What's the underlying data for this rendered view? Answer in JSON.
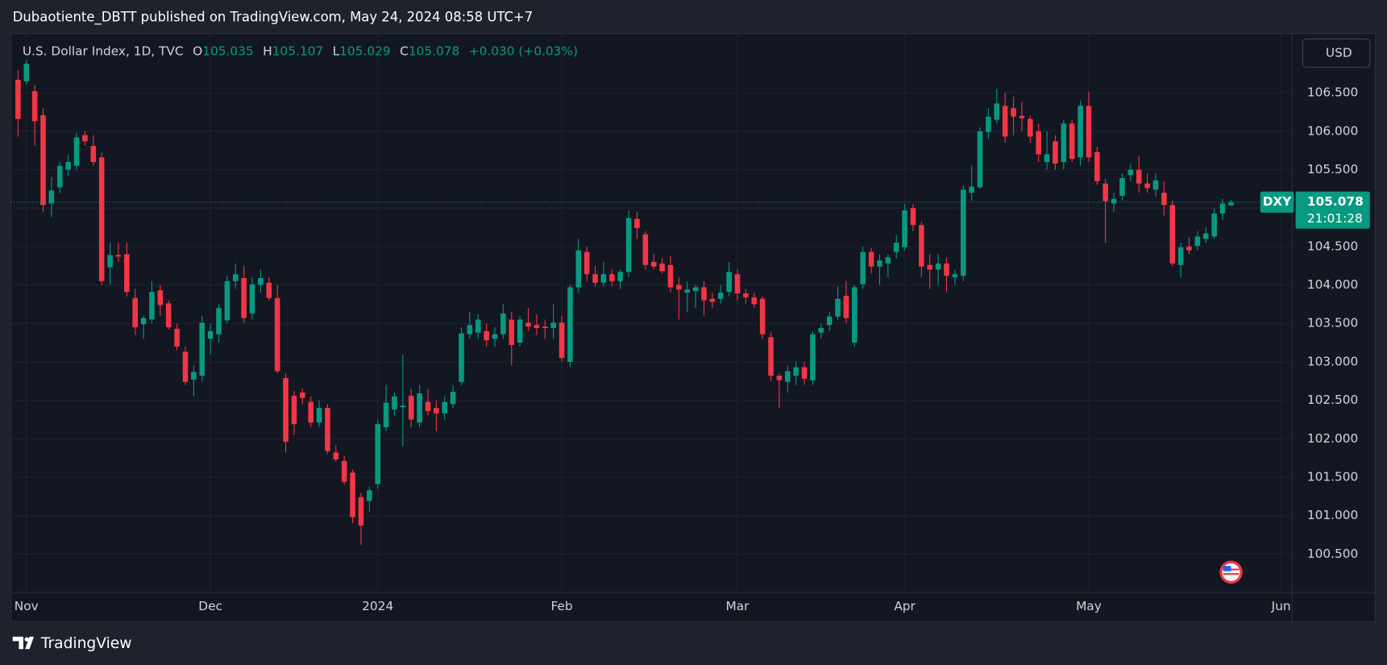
{
  "header": {
    "text": "Dubaotiente_DBTT published on TradingView.com, May 24, 2024 08:58 UTC+7"
  },
  "chart_data": {
    "type": "candlestick",
    "title": "U.S. Dollar Index, 1D, TVC",
    "ohlc_labels": [
      "O",
      "H",
      "L",
      "C"
    ],
    "change_label": "+0.030 (+0.03%)",
    "symbol": "DXY",
    "countdown": "21:01:28",
    "currency": "USD",
    "up_color": "#089981",
    "down_color": "#f23645",
    "grid": true,
    "open": [
      106.67,
      106.65,
      106.52,
      106.21,
      105.06,
      105.27,
      105.5,
      105.55,
      105.95,
      105.81,
      105.66,
      104.23,
      104.39,
      104.4,
      103.83,
      103.49,
      103.55,
      103.93,
      103.76,
      103.43,
      103.13,
      102.77,
      102.82,
      103.3,
      103.36,
      103.54,
      104.05,
      104.09,
      103.63,
      104.0,
      104.03,
      103.83,
      102.79,
      102.56,
      102.6,
      102.48,
      102.21,
      102.4,
      101.82,
      101.71,
      101.56,
      101.24,
      101.19,
      101.41,
      102.15,
      102.38,
      102.41,
      102.56,
      102.21,
      102.48,
      102.4,
      102.33,
      102.45,
      102.74,
      103.36,
      103.38,
      103.4,
      103.3,
      103.36,
      103.55,
      103.25,
      103.51,
      103.48,
      103.46,
      103.44,
      103.51,
      103.0,
      103.97,
      104.43,
      104.14,
      104.03,
      104.14,
      104.05,
      104.17,
      104.86,
      104.66,
      104.3,
      104.28,
      104.26,
      104.0,
      103.9,
      103.92,
      103.97,
      103.82,
      103.82,
      103.91,
      104.14,
      103.89,
      103.84,
      103.82,
      103.32,
      102.82,
      102.74,
      102.82,
      102.93,
      102.76,
      103.38,
      103.48,
      103.59,
      103.86,
      103.25,
      104.01,
      104.43,
      104.24,
      104.28,
      104.43,
      104.49,
      105.0,
      104.78,
      104.26,
      104.2,
      104.28,
      104.1,
      104.12,
      105.2,
      105.27,
      105.99,
      106.15,
      106.33,
      106.3,
      106.2,
      106.16,
      106.0,
      105.6,
      105.87,
      105.6,
      106.1,
      105.66,
      106.33,
      105.73,
      105.32,
      105.06,
      105.16,
      105.43,
      105.5,
      105.32,
      105.24,
      105.2,
      105.04,
      104.26,
      104.5,
      104.51,
      104.6,
      104.63,
      104.93,
      105.035
    ],
    "high": [
      106.79,
      106.93,
      106.6,
      106.3,
      105.4,
      105.6,
      105.7,
      105.98,
      106.0,
      105.95,
      105.72,
      104.55,
      104.55,
      104.55,
      103.95,
      103.6,
      104.05,
      104.0,
      103.8,
      103.5,
      103.2,
      102.95,
      103.6,
      103.5,
      103.75,
      104.12,
      104.28,
      104.25,
      104.1,
      104.2,
      104.1,
      104.0,
      102.85,
      102.62,
      102.65,
      102.55,
      102.5,
      102.45,
      101.92,
      101.78,
      101.6,
      101.3,
      101.38,
      102.25,
      102.7,
      102.6,
      103.09,
      102.65,
      102.7,
      102.65,
      102.5,
      102.55,
      102.7,
      103.45,
      103.65,
      103.62,
      103.5,
      103.45,
      103.75,
      103.65,
      103.6,
      103.7,
      103.62,
      103.55,
      103.75,
      103.6,
      104.0,
      104.6,
      104.5,
      104.25,
      104.3,
      104.2,
      104.2,
      104.97,
      104.95,
      104.7,
      104.4,
      104.35,
      104.38,
      104.1,
      104.05,
      104.0,
      104.05,
      103.9,
      104.0,
      104.3,
      104.2,
      103.95,
      103.9,
      103.85,
      103.38,
      102.85,
      102.95,
      103.0,
      103.0,
      103.4,
      103.5,
      103.65,
      103.98,
      104.05,
      104.0,
      104.5,
      104.48,
      104.4,
      104.4,
      104.65,
      105.05,
      105.05,
      104.82,
      104.4,
      104.4,
      104.35,
      104.2,
      105.3,
      105.55,
      106.05,
      106.3,
      106.55,
      106.5,
      106.45,
      106.38,
      106.2,
      106.1,
      106.0,
      105.95,
      106.15,
      106.15,
      106.4,
      106.51,
      105.8,
      105.38,
      105.2,
      105.45,
      105.58,
      105.68,
      105.45,
      105.45,
      105.35,
      105.1,
      104.55,
      104.62,
      104.7,
      104.75,
      105.0,
      105.12,
      105.107
    ],
    "low": [
      105.93,
      106.61,
      105.81,
      104.95,
      104.88,
      105.2,
      105.42,
      105.5,
      105.82,
      105.55,
      104.0,
      104.0,
      104.3,
      103.85,
      103.35,
      103.3,
      103.5,
      103.6,
      103.42,
      103.15,
      102.7,
      102.55,
      102.75,
      103.1,
      103.25,
      103.5,
      103.95,
      103.5,
      103.55,
      103.9,
      103.8,
      102.85,
      101.82,
      102.05,
      102.45,
      102.15,
      102.15,
      101.8,
      101.7,
      101.4,
      100.9,
      100.62,
      101.05,
      101.35,
      102.1,
      102.3,
      101.9,
      102.15,
      102.15,
      102.3,
      102.1,
      102.25,
      102.4,
      102.7,
      103.3,
      103.3,
      103.2,
      103.2,
      103.3,
      102.95,
      103.2,
      103.4,
      103.35,
      103.3,
      103.3,
      103.0,
      102.93,
      103.9,
      104.05,
      103.98,
      103.98,
      103.98,
      103.95,
      104.1,
      104.6,
      104.2,
      104.2,
      104.15,
      103.9,
      103.55,
      103.65,
      103.7,
      103.6,
      103.7,
      103.75,
      103.85,
      103.8,
      103.75,
      103.7,
      103.3,
      102.75,
      102.4,
      102.6,
      102.7,
      102.7,
      102.7,
      103.3,
      103.4,
      103.55,
      103.5,
      103.2,
      103.95,
      104.15,
      104.0,
      104.1,
      104.35,
      104.45,
      104.7,
      104.1,
      103.95,
      104.0,
      103.9,
      104.0,
      104.05,
      105.1,
      105.25,
      105.9,
      106.1,
      105.85,
      105.95,
      106.0,
      105.85,
      105.6,
      105.5,
      105.5,
      105.5,
      105.6,
      105.55,
      105.6,
      105.3,
      104.55,
      104.95,
      105.1,
      105.35,
      105.2,
      105.2,
      105.15,
      104.9,
      104.25,
      104.1,
      104.4,
      104.45,
      104.55,
      104.6,
      104.85,
      105.029
    ],
    "close": [
      106.16,
      106.88,
      106.13,
      105.04,
      105.23,
      105.55,
      105.6,
      105.92,
      105.87,
      105.6,
      104.05,
      104.39,
      104.37,
      103.91,
      103.45,
      103.57,
      103.91,
      103.74,
      103.45,
      103.2,
      102.74,
      102.87,
      103.51,
      103.4,
      103.7,
      104.05,
      104.14,
      103.57,
      104.01,
      104.09,
      103.83,
      102.88,
      101.96,
      102.19,
      102.53,
      102.21,
      102.4,
      101.84,
      101.73,
      101.44,
      100.98,
      100.87,
      101.33,
      102.19,
      102.47,
      102.55,
      102.43,
      102.25,
      102.59,
      102.36,
      102.33,
      102.48,
      102.61,
      103.37,
      103.48,
      103.55,
      103.28,
      103.36,
      103.63,
      103.22,
      103.55,
      103.46,
      103.44,
      103.44,
      103.51,
      103.05,
      103.97,
      104.45,
      104.14,
      104.03,
      104.14,
      104.05,
      104.17,
      104.87,
      104.74,
      104.26,
      104.24,
      104.18,
      103.97,
      103.94,
      103.94,
      103.97,
      103.8,
      103.78,
      103.9,
      104.17,
      103.89,
      103.84,
      103.75,
      103.36,
      102.82,
      102.76,
      102.88,
      102.93,
      102.78,
      103.36,
      103.44,
      103.59,
      103.82,
      103.57,
      103.97,
      104.43,
      104.24,
      104.32,
      104.36,
      104.55,
      104.97,
      104.78,
      104.24,
      104.2,
      104.28,
      104.12,
      104.14,
      105.24,
      105.28,
      106.0,
      106.19,
      106.36,
      105.93,
      106.19,
      106.17,
      105.93,
      105.7,
      105.7,
      105.58,
      106.1,
      105.64,
      106.33,
      105.66,
      105.35,
      105.09,
      105.12,
      105.39,
      105.5,
      105.32,
      105.26,
      105.36,
      105.04,
      104.28,
      104.49,
      104.45,
      104.63,
      104.67,
      104.93,
      105.06,
      105.078
    ],
    "xlim": [
      -0.85,
      152.2
    ],
    "xticks": [
      {
        "value": 1,
        "label": "Nov"
      },
      {
        "value": 23,
        "label": "Dec"
      },
      {
        "value": 43,
        "label": "2024"
      },
      {
        "value": 65,
        "label": "Feb"
      },
      {
        "value": 86,
        "label": "Mar"
      },
      {
        "value": 106,
        "label": "Apr"
      },
      {
        "value": 128,
        "label": "May"
      },
      {
        "value": 151,
        "label": "Jun"
      }
    ],
    "ylim": [
      100.0,
      107.27
    ],
    "yticks": [
      {
        "value": 100.5,
        "label": "100.500"
      },
      {
        "value": 101,
        "label": "101.000"
      },
      {
        "value": 101.5,
        "label": "101.500"
      },
      {
        "value": 102,
        "label": "102.000"
      },
      {
        "value": 102.5,
        "label": "102.500"
      },
      {
        "value": 103,
        "label": "103.000"
      },
      {
        "value": 103.5,
        "label": "103.500"
      },
      {
        "value": 104,
        "label": "104.000"
      },
      {
        "value": 104.5,
        "label": "104.500"
      },
      {
        "value": 105,
        "label": "105.000"
      },
      {
        "value": 105.5,
        "label": "105.500"
      },
      {
        "value": 106,
        "label": "106.000"
      },
      {
        "value": 106.5,
        "label": "106.500"
      }
    ]
  },
  "footer": {
    "brand": "TradingView"
  }
}
